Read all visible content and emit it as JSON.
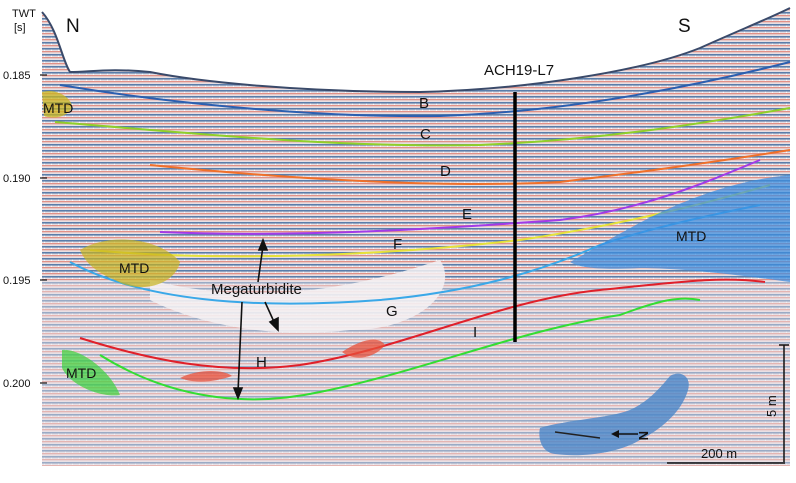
{
  "figure": {
    "axis_title_line1": "TWT",
    "axis_title_line2": "[s]",
    "y_ticks": [
      "0.185",
      "0.190",
      "0.195",
      "0.200"
    ],
    "compass_left": "N",
    "compass_right": "S",
    "well_label": "ACH19-L7",
    "horizons": [
      "B",
      "C",
      "D",
      "E",
      "F",
      "G",
      "H",
      "I"
    ],
    "units": {
      "mtd_1": "MTD",
      "mtd_2": "MTD",
      "mtd_3": "MTD",
      "mtd_4": "MTD",
      "megaturbidite": "Megaturbidite"
    },
    "scale": {
      "horizontal": "200 m",
      "vertical": "5 m"
    },
    "inset_north": "N"
  },
  "colors": {
    "horizon_b": "#2b5fb0",
    "horizon_c": "#8fcf2a",
    "horizon_d": "#f0702a",
    "horizon_e": "#a23ae8",
    "horizon_f": "#e6e23a",
    "horizon_g": "#3aa8e8",
    "horizon_h": "#e0202a",
    "horizon_i": "#33dd33",
    "mtd_yellow": "#c8b41e",
    "mtd_green": "#3ad23a",
    "mtd_blue": "#3a8ee0",
    "megaturbidite_red": "#e8503a"
  }
}
